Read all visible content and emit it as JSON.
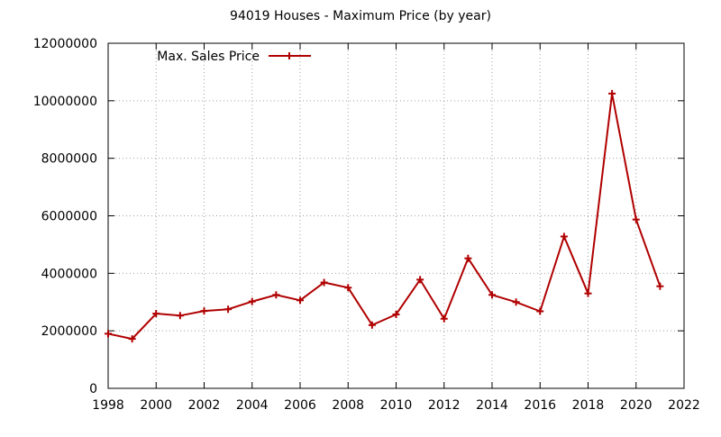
{
  "chart_data": {
    "type": "line",
    "title": "94019 Houses - Maximum Price (by year)",
    "xlabel": "",
    "ylabel": "",
    "xlim": [
      1998,
      2022
    ],
    "ylim": [
      0,
      12000000
    ],
    "xticks": [
      "1998",
      "2000",
      "2002",
      "2004",
      "2006",
      "2008",
      "2010",
      "2012",
      "2014",
      "2016",
      "2018",
      "2020",
      "2022"
    ],
    "yticks": [
      "0",
      "2000000",
      "4000000",
      "6000000",
      "8000000",
      "10000000",
      "12000000"
    ],
    "grid": true,
    "legend_position": "top-left",
    "series": [
      {
        "name": "Max. Sales Price",
        "color": "#b00000",
        "x": [
          1998,
          1999,
          2000,
          2001,
          2002,
          2003,
          2004,
          2005,
          2006,
          2007,
          2008,
          2009,
          2010,
          2011,
          2012,
          2013,
          2014,
          2015,
          2016,
          2017,
          2018,
          2019,
          2020,
          2021
        ],
        "y": [
          1900000,
          1720000,
          2600000,
          2530000,
          2690000,
          2750000,
          3020000,
          3250000,
          3060000,
          3680000,
          3500000,
          2200000,
          2570000,
          3780000,
          2420000,
          4520000,
          3250000,
          3000000,
          2680000,
          5280000,
          3300000,
          10250000,
          5870000,
          3550000
        ]
      }
    ]
  }
}
